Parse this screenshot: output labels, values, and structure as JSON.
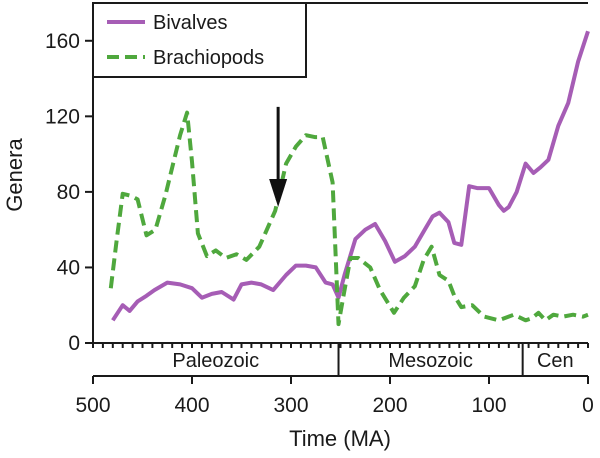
{
  "chart_data": {
    "type": "line",
    "title": "",
    "xlabel": "Time (MA)",
    "ylabel": "Genera",
    "xlim": [
      500,
      0
    ],
    "ylim": [
      0,
      180
    ],
    "x_ticks": [
      500,
      400,
      300,
      200,
      100,
      0
    ],
    "y_ticks": [
      0,
      40,
      80,
      120,
      160
    ],
    "legend_position": "top-left",
    "grid": false,
    "series": [
      {
        "name": "Bivalves",
        "color": "#a65db5",
        "style": "solid",
        "x": [
          480,
          470,
          463,
          455,
          446,
          438,
          425,
          412,
          400,
          390,
          380,
          370,
          358,
          350,
          340,
          330,
          318,
          305,
          295,
          285,
          275,
          265,
          258,
          252,
          246,
          235,
          225,
          215,
          205,
          195,
          185,
          175,
          165,
          157,
          150,
          141,
          135,
          128,
          120,
          112,
          100,
          90,
          85,
          80,
          72,
          63,
          55,
          48,
          40,
          30,
          20,
          10,
          0
        ],
        "values": [
          12,
          20,
          17,
          22,
          25,
          28,
          32,
          31,
          29,
          24,
          26,
          27,
          23,
          31,
          32,
          31,
          28,
          36,
          41,
          41,
          40,
          32,
          31,
          24,
          36,
          55,
          60,
          63,
          54,
          43,
          46,
          51,
          60,
          67,
          69,
          64,
          53,
          52,
          83,
          82,
          82,
          73,
          70,
          72,
          80,
          95,
          90,
          93,
          97,
          115,
          127,
          149,
          165
        ]
      },
      {
        "name": "Brachiopods",
        "color": "#4fa83d",
        "style": "dashed",
        "x": [
          482,
          476,
          470,
          462,
          455,
          446,
          437,
          427,
          412,
          405,
          400,
          394,
          385,
          376,
          366,
          355,
          345,
          332,
          316,
          305,
          295,
          285,
          276,
          268,
          258,
          252,
          247,
          240,
          232,
          220,
          210,
          196,
          186,
          175,
          166,
          158,
          150,
          141,
          135,
          128,
          117,
          105,
          90,
          75,
          63,
          57,
          50,
          43,
          35,
          25,
          15,
          5,
          0
        ],
        "values": [
          29,
          55,
          79,
          78,
          76,
          57,
          60,
          78,
          110,
          122,
          96,
          58,
          46,
          49,
          45,
          47,
          44,
          51,
          70,
          95,
          104,
          110,
          109,
          109,
          85,
          10,
          25,
          45,
          45,
          40,
          28,
          16,
          24,
          30,
          44,
          51,
          36,
          33,
          25,
          19,
          20,
          14,
          12,
          15,
          12,
          13,
          16,
          12,
          15,
          14,
          15,
          14,
          15
        ]
      }
    ],
    "annotations": [
      {
        "type": "arrow",
        "direction": "down",
        "x": 313,
        "y_top": 125,
        "y_tip": 72
      }
    ],
    "eras": [
      {
        "label": "Paleozoic",
        "from": 500,
        "to": 252
      },
      {
        "label": "Mesozoic",
        "from": 252,
        "to": 66
      },
      {
        "label": "Cen",
        "from": 66,
        "to": 0
      }
    ]
  }
}
